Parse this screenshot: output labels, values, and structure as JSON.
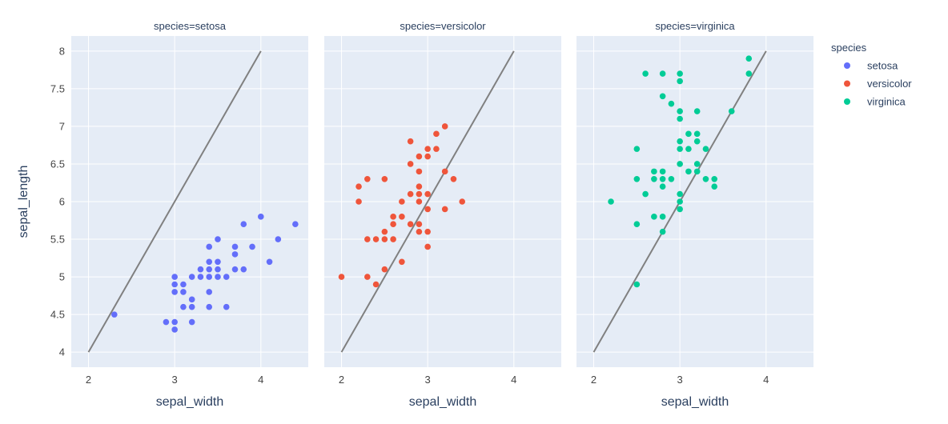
{
  "chart_data": {
    "type": "scatter",
    "x_label": "sepal_width",
    "y_label": "sepal_length",
    "xlim": [
      1.8,
      4.55
    ],
    "ylim": [
      3.8,
      8.2
    ],
    "x_ticks": [
      2,
      3,
      4
    ],
    "y_ticks": [
      4,
      4.5,
      5,
      5.5,
      6,
      6.5,
      7,
      7.5,
      8
    ],
    "grid": true,
    "legend": {
      "title": "species",
      "position": "right",
      "items": [
        {
          "label": "setosa",
          "color": "#636efa"
        },
        {
          "label": "versicolor",
          "color": "#ef553b"
        },
        {
          "label": "virginica",
          "color": "#00cc96"
        }
      ]
    },
    "reference_line": {
      "x": [
        2,
        4
      ],
      "y": [
        4,
        8
      ],
      "color": "#808080"
    },
    "facets": [
      {
        "title": "species=setosa",
        "color": "#636efa",
        "points": [
          [
            2.3,
            4.5
          ],
          [
            2.9,
            4.4
          ],
          [
            3.0,
            4.3
          ],
          [
            3.0,
            4.4
          ],
          [
            3.2,
            4.4
          ],
          [
            3.0,
            4.8
          ],
          [
            3.0,
            4.9
          ],
          [
            3.0,
            5.0
          ],
          [
            3.1,
            4.8
          ],
          [
            3.1,
            4.9
          ],
          [
            3.1,
            4.6
          ],
          [
            3.2,
            4.6
          ],
          [
            3.2,
            4.7
          ],
          [
            3.2,
            5.0
          ],
          [
            3.3,
            5.0
          ],
          [
            3.3,
            5.1
          ],
          [
            3.4,
            4.6
          ],
          [
            3.4,
            4.8
          ],
          [
            3.4,
            5.0
          ],
          [
            3.4,
            5.1
          ],
          [
            3.4,
            5.2
          ],
          [
            3.4,
            5.4
          ],
          [
            3.5,
            5.0
          ],
          [
            3.5,
            5.1
          ],
          [
            3.5,
            5.2
          ],
          [
            3.5,
            5.5
          ],
          [
            3.6,
            4.6
          ],
          [
            3.6,
            5.0
          ],
          [
            3.7,
            5.1
          ],
          [
            3.7,
            5.3
          ],
          [
            3.7,
            5.4
          ],
          [
            3.8,
            5.1
          ],
          [
            3.8,
            5.7
          ],
          [
            3.9,
            5.4
          ],
          [
            4.0,
            5.8
          ],
          [
            4.1,
            5.2
          ],
          [
            4.2,
            5.5
          ],
          [
            4.4,
            5.7
          ]
        ]
      },
      {
        "title": "species=versicolor",
        "color": "#ef553b",
        "points": [
          [
            2.0,
            5.0
          ],
          [
            2.2,
            6.0
          ],
          [
            2.2,
            6.2
          ],
          [
            2.3,
            5.0
          ],
          [
            2.3,
            5.5
          ],
          [
            2.3,
            6.3
          ],
          [
            2.4,
            4.9
          ],
          [
            2.4,
            5.5
          ],
          [
            2.5,
            5.1
          ],
          [
            2.5,
            5.5
          ],
          [
            2.5,
            5.6
          ],
          [
            2.5,
            6.3
          ],
          [
            2.6,
            5.5
          ],
          [
            2.6,
            5.7
          ],
          [
            2.6,
            5.8
          ],
          [
            2.7,
            5.2
          ],
          [
            2.7,
            5.8
          ],
          [
            2.7,
            6.0
          ],
          [
            2.8,
            5.7
          ],
          [
            2.8,
            6.1
          ],
          [
            2.8,
            6.5
          ],
          [
            2.8,
            6.8
          ],
          [
            2.9,
            5.6
          ],
          [
            2.9,
            5.7
          ],
          [
            2.9,
            6.0
          ],
          [
            2.9,
            6.1
          ],
          [
            2.9,
            6.2
          ],
          [
            2.9,
            6.4
          ],
          [
            2.9,
            6.6
          ],
          [
            3.0,
            5.4
          ],
          [
            3.0,
            5.6
          ],
          [
            3.0,
            5.9
          ],
          [
            3.0,
            6.1
          ],
          [
            3.0,
            6.6
          ],
          [
            3.0,
            6.7
          ],
          [
            3.1,
            6.7
          ],
          [
            3.1,
            6.9
          ],
          [
            3.2,
            5.9
          ],
          [
            3.2,
            6.4
          ],
          [
            3.2,
            7.0
          ],
          [
            3.3,
            6.3
          ],
          [
            3.4,
            6.0
          ]
        ]
      },
      {
        "title": "species=virginica",
        "color": "#00cc96",
        "points": [
          [
            2.2,
            6.0
          ],
          [
            2.5,
            4.9
          ],
          [
            2.5,
            5.7
          ],
          [
            2.5,
            6.3
          ],
          [
            2.5,
            6.7
          ],
          [
            2.6,
            6.1
          ],
          [
            2.6,
            7.7
          ],
          [
            2.7,
            5.8
          ],
          [
            2.7,
            6.3
          ],
          [
            2.7,
            6.4
          ],
          [
            2.8,
            5.6
          ],
          [
            2.8,
            5.8
          ],
          [
            2.8,
            6.2
          ],
          [
            2.8,
            6.3
          ],
          [
            2.8,
            6.4
          ],
          [
            2.8,
            7.4
          ],
          [
            2.8,
            7.7
          ],
          [
            2.9,
            6.3
          ],
          [
            2.9,
            7.3
          ],
          [
            3.0,
            5.9
          ],
          [
            3.0,
            6.0
          ],
          [
            3.0,
            6.1
          ],
          [
            3.0,
            6.5
          ],
          [
            3.0,
            6.7
          ],
          [
            3.0,
            6.8
          ],
          [
            3.0,
            7.1
          ],
          [
            3.0,
            7.2
          ],
          [
            3.0,
            7.6
          ],
          [
            3.0,
            7.7
          ],
          [
            3.1,
            6.4
          ],
          [
            3.1,
            6.7
          ],
          [
            3.1,
            6.9
          ],
          [
            3.2,
            6.4
          ],
          [
            3.2,
            6.5
          ],
          [
            3.2,
            6.8
          ],
          [
            3.2,
            6.9
          ],
          [
            3.2,
            7.2
          ],
          [
            3.3,
            6.3
          ],
          [
            3.3,
            6.7
          ],
          [
            3.4,
            6.2
          ],
          [
            3.4,
            6.3
          ],
          [
            3.6,
            7.2
          ],
          [
            3.8,
            7.7
          ],
          [
            3.8,
            7.9
          ]
        ]
      }
    ]
  }
}
